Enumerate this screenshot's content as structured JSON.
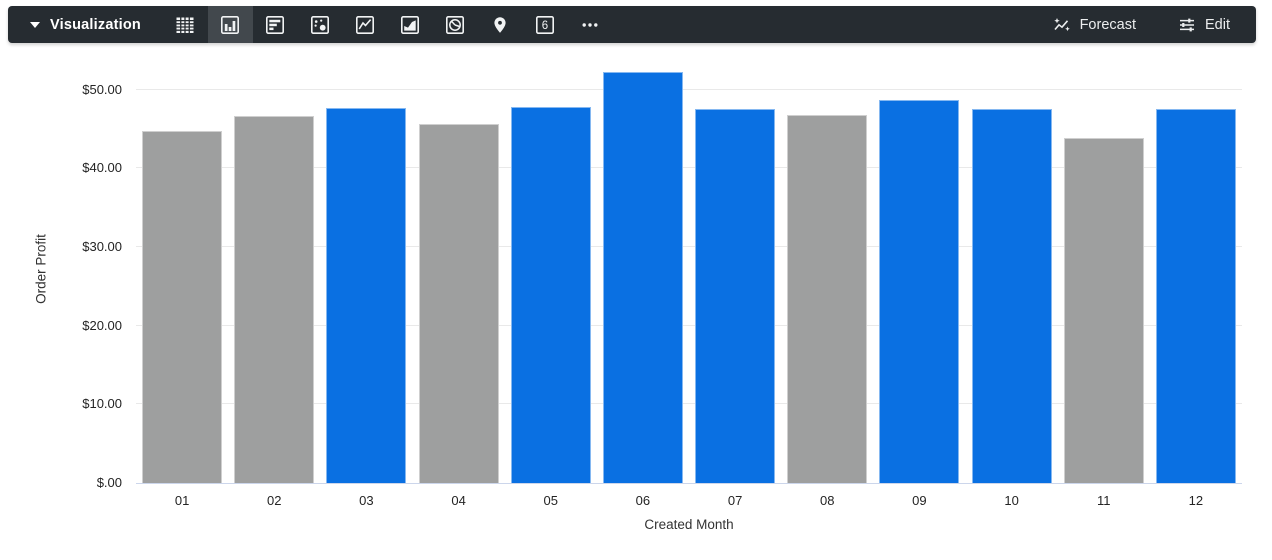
{
  "toolbar": {
    "bg_color": "#262c31",
    "selected_bg_color": "#42484d",
    "title": "Visualization",
    "chart_type_icons": [
      {
        "name": "table",
        "selected": false
      },
      {
        "name": "column",
        "selected": true
      },
      {
        "name": "bar",
        "selected": false
      },
      {
        "name": "scatter",
        "selected": false
      },
      {
        "name": "line",
        "selected": false
      },
      {
        "name": "area",
        "selected": false
      },
      {
        "name": "pie",
        "selected": false
      },
      {
        "name": "map",
        "selected": false
      },
      {
        "name": "single-value",
        "selected": false
      },
      {
        "name": "more",
        "selected": false
      }
    ],
    "single_value_glyph": "6",
    "forecast_label": "Forecast",
    "edit_label": "Edit"
  },
  "chart_data": {
    "type": "bar",
    "title": "",
    "xlabel": "Created Month",
    "ylabel": "Order Profit",
    "categories": [
      "01",
      "02",
      "03",
      "04",
      "05",
      "06",
      "07",
      "08",
      "09",
      "10",
      "11",
      "12"
    ],
    "values": [
      44.7,
      46.6,
      47.7,
      45.6,
      47.8,
      52.2,
      47.5,
      46.8,
      48.7,
      47.5,
      43.9,
      47.6
    ],
    "bar_palette": [
      "gray",
      "gray",
      "blue",
      "gray",
      "blue",
      "blue",
      "blue",
      "gray",
      "blue",
      "blue",
      "gray",
      "blue"
    ],
    "colors": {
      "blue": "#0a70e2",
      "gray": "#9e9f9f"
    },
    "yticks": [
      {
        "value": 0,
        "label": "$.00"
      },
      {
        "value": 10,
        "label": "$10.00"
      },
      {
        "value": 20,
        "label": "$20.00"
      },
      {
        "value": 30,
        "label": "$30.00"
      },
      {
        "value": 40,
        "label": "$40.00"
      },
      {
        "value": 50,
        "label": "$50.00"
      }
    ],
    "ylim": [
      0,
      54.4
    ],
    "grid": true,
    "legend": "none",
    "gridline_color": "#e9e9e9",
    "baseline_color": "#ccd6eb"
  }
}
